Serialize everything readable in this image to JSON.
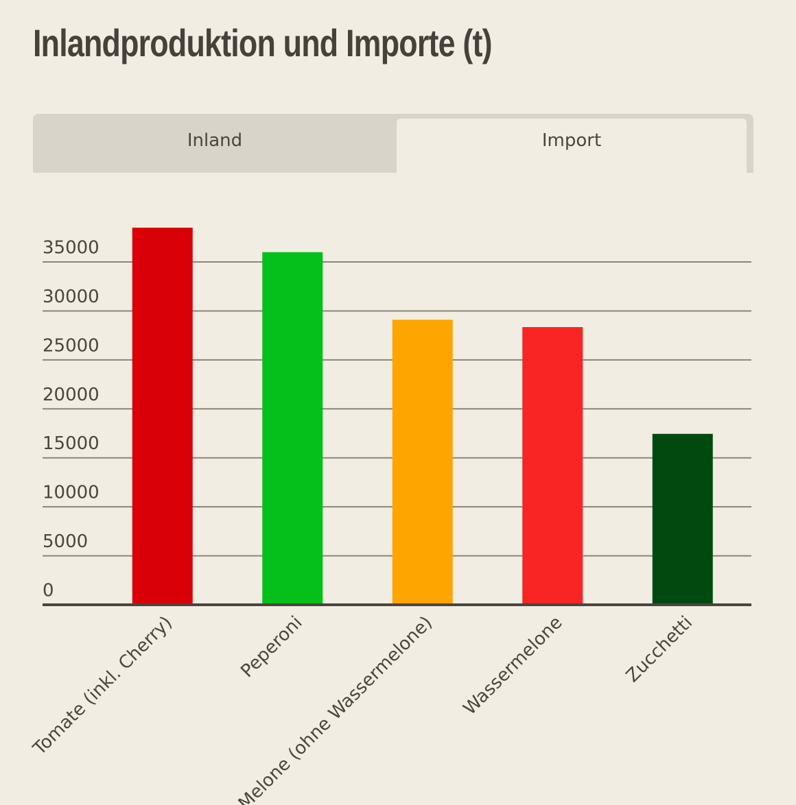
{
  "tabs": [
    "Inland",
    "Import"
  ],
  "chart_data": {
    "type": "bar",
    "title": "Inlandproduktion und Importe (t)",
    "categories": [
      "Tomate (inkl. Cherry)",
      "Peperoni",
      "Melone (ohne Wassermelone)",
      "Wassermelone",
      "Zucchetti"
    ],
    "values": [
      38500,
      36000,
      29100,
      28350,
      17450
    ],
    "colors": [
      "#d90008",
      "#05c01a",
      "#ffa500",
      "#f92424",
      "#004a0f"
    ],
    "ylim": [
      0,
      40000
    ],
    "yticks": [
      0,
      5000,
      10000,
      15000,
      20000,
      25000,
      30000,
      35000
    ],
    "grid": true
  }
}
